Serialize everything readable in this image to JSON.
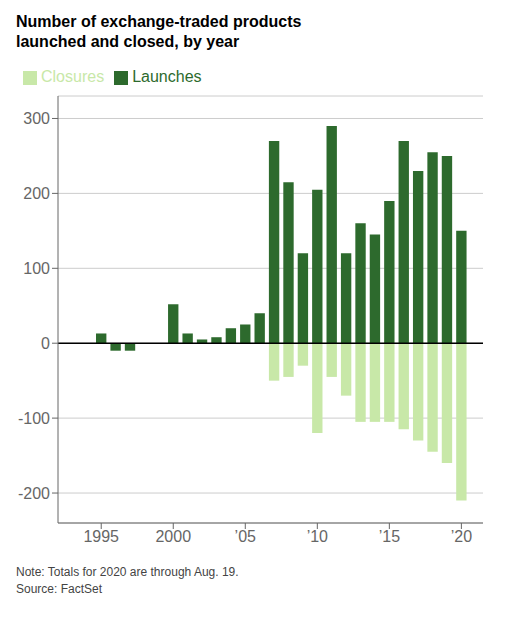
{
  "chart_data": {
    "type": "bar",
    "title": "Number of exchange-traded products\nlaunched and closed, by year",
    "x": [
      1993,
      1994,
      1995,
      1996,
      1997,
      1998,
      1999,
      2000,
      2001,
      2002,
      2003,
      2004,
      2005,
      2006,
      2007,
      2008,
      2009,
      2010,
      2011,
      2012,
      2013,
      2014,
      2015,
      2016,
      2017,
      2018,
      2019,
      2020
    ],
    "series": [
      {
        "name": "Launches",
        "color": "#2d6a2d",
        "values": [
          0,
          0,
          13,
          -10,
          -10,
          0,
          0,
          52,
          13,
          5,
          8,
          20,
          25,
          40,
          270,
          215,
          120,
          205,
          290,
          120,
          160,
          145,
          190,
          270,
          230,
          255,
          250,
          150
        ]
      },
      {
        "name": "Closures",
        "color": "#c8e8a8",
        "values": [
          null,
          null,
          null,
          null,
          null,
          null,
          null,
          null,
          null,
          null,
          null,
          null,
          null,
          null,
          -50,
          -45,
          -30,
          -120,
          -45,
          -70,
          -105,
          -105,
          -105,
          -115,
          -130,
          -145,
          -160,
          -210
        ]
      }
    ],
    "xlim": [
      1992.0,
      2021.5
    ],
    "xticks": [
      1995,
      2000,
      {
        "value": 2005,
        "label": "’05"
      },
      {
        "value": 2010,
        "label": "’10"
      },
      {
        "value": 2015,
        "label": "’15"
      },
      {
        "value": 2020,
        "label": "’20"
      }
    ],
    "ylim": [
      -240,
      330
    ],
    "yticks": [
      -200,
      -100,
      0,
      100,
      200,
      300
    ],
    "grid": true,
    "legend": "upper left",
    "annotations": [
      "Note: Totals for 2020 are through Aug. 19.",
      "Source: FactSet"
    ]
  }
}
